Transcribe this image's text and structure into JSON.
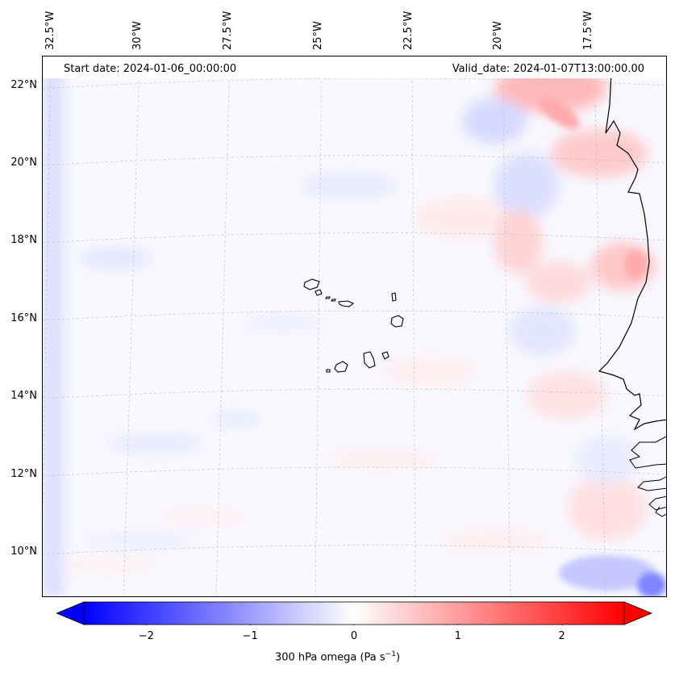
{
  "map": {
    "start_date": "Start date: 2024-01-06_00:00:00",
    "valid_date": "Valid_date: 2024-01-07T13:00:00.00",
    "lat_labels": [
      "22°N",
      "20°N",
      "18°N",
      "16°N",
      "14°N",
      "12°N",
      "10°N"
    ],
    "lon_labels": [
      "32.5°W",
      "30°W",
      "27.5°W",
      "25°W",
      "22.5°W",
      "20°W",
      "17.5°W"
    ]
  },
  "colorbar": {
    "title_prefix": "300 hPa omega (Pa s",
    "title_exp": "−1",
    "title_suffix": ")",
    "ticks": [
      "−2",
      "−1",
      "0",
      "1",
      "2"
    ],
    "tick_values": [
      -2,
      -1,
      0,
      1,
      2
    ],
    "min": -2.6,
    "max": 2.6,
    "color_neg": "#0000ff",
    "color_zero": "#ffffff",
    "color_pos": "#ff0000"
  }
}
